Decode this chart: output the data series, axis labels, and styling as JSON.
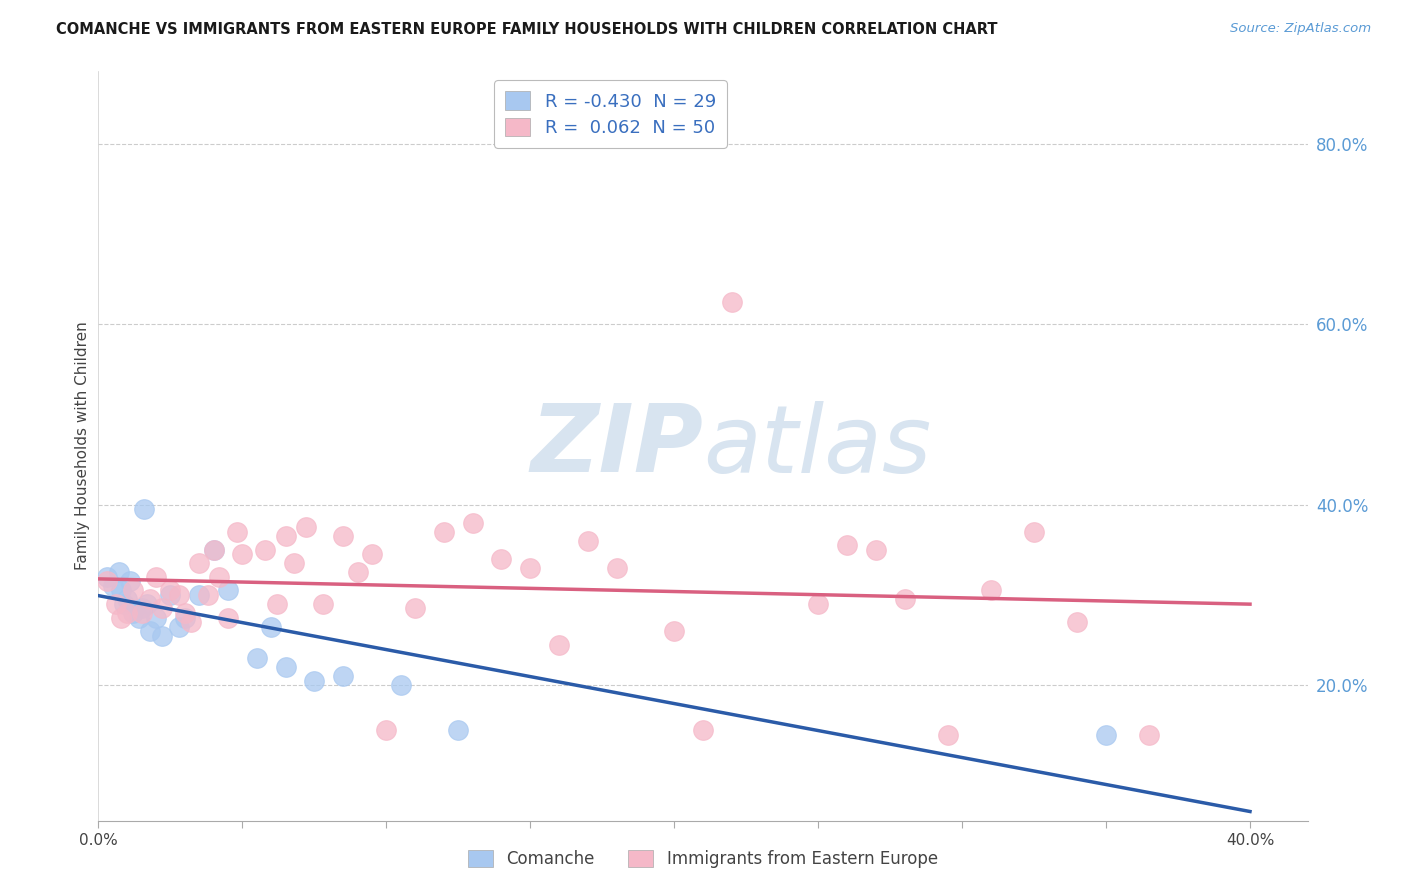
{
  "title": "COMANCHE VS IMMIGRANTS FROM EASTERN EUROPE FAMILY HOUSEHOLDS WITH CHILDREN CORRELATION CHART",
  "source": "Source: ZipAtlas.com",
  "ylabel": "Family Households with Children",
  "xlim": [
    0.0,
    0.42
  ],
  "ylim": [
    0.05,
    0.88
  ],
  "xticks": [
    0.0,
    0.05,
    0.1,
    0.15,
    0.2,
    0.25,
    0.3,
    0.35,
    0.4
  ],
  "yticks_right": [
    0.2,
    0.4,
    0.6,
    0.8
  ],
  "ytick_labels_right": [
    "20.0%",
    "40.0%",
    "60.0%",
    "80.0%"
  ],
  "xtick_labels": [
    "0.0%",
    "",
    "",
    "",
    "",
    "",
    "",
    "",
    "40.0%"
  ],
  "legend_R1": "-0.430",
  "legend_N1": "29",
  "legend_R2": " 0.062",
  "legend_N2": "50",
  "color_blue": "#A8C8F0",
  "color_pink": "#F5B8C8",
  "line_blue": "#2B5BA8",
  "line_pink": "#D96080",
  "watermark_color": "#D8E4F0",
  "blue_scatter_x": [
    0.003,
    0.005,
    0.007,
    0.008,
    0.009,
    0.01,
    0.011,
    0.012,
    0.014,
    0.015,
    0.016,
    0.017,
    0.018,
    0.02,
    0.022,
    0.025,
    0.028,
    0.03,
    0.035,
    0.04,
    0.045,
    0.055,
    0.06,
    0.065,
    0.075,
    0.085,
    0.105,
    0.125,
    0.35
  ],
  "blue_scatter_y": [
    0.32,
    0.31,
    0.325,
    0.305,
    0.29,
    0.295,
    0.315,
    0.28,
    0.275,
    0.285,
    0.395,
    0.29,
    0.26,
    0.275,
    0.255,
    0.3,
    0.265,
    0.275,
    0.3,
    0.35,
    0.305,
    0.23,
    0.265,
    0.22,
    0.205,
    0.21,
    0.2,
    0.15,
    0.145
  ],
  "pink_scatter_x": [
    0.003,
    0.006,
    0.008,
    0.01,
    0.012,
    0.015,
    0.018,
    0.02,
    0.022,
    0.025,
    0.028,
    0.03,
    0.032,
    0.035,
    0.038,
    0.04,
    0.042,
    0.045,
    0.048,
    0.05,
    0.058,
    0.062,
    0.065,
    0.068,
    0.072,
    0.078,
    0.085,
    0.09,
    0.095,
    0.1,
    0.11,
    0.12,
    0.13,
    0.14,
    0.15,
    0.16,
    0.17,
    0.18,
    0.2,
    0.21,
    0.22,
    0.25,
    0.26,
    0.27,
    0.28,
    0.295,
    0.31,
    0.325,
    0.34,
    0.365
  ],
  "pink_scatter_y": [
    0.315,
    0.29,
    0.275,
    0.28,
    0.305,
    0.28,
    0.295,
    0.32,
    0.285,
    0.305,
    0.3,
    0.28,
    0.27,
    0.335,
    0.3,
    0.35,
    0.32,
    0.275,
    0.37,
    0.345,
    0.35,
    0.29,
    0.365,
    0.335,
    0.375,
    0.29,
    0.365,
    0.325,
    0.345,
    0.15,
    0.285,
    0.37,
    0.38,
    0.34,
    0.33,
    0.245,
    0.36,
    0.33,
    0.26,
    0.15,
    0.625,
    0.29,
    0.355,
    0.35,
    0.295,
    0.145,
    0.305,
    0.37,
    0.27,
    0.145
  ]
}
